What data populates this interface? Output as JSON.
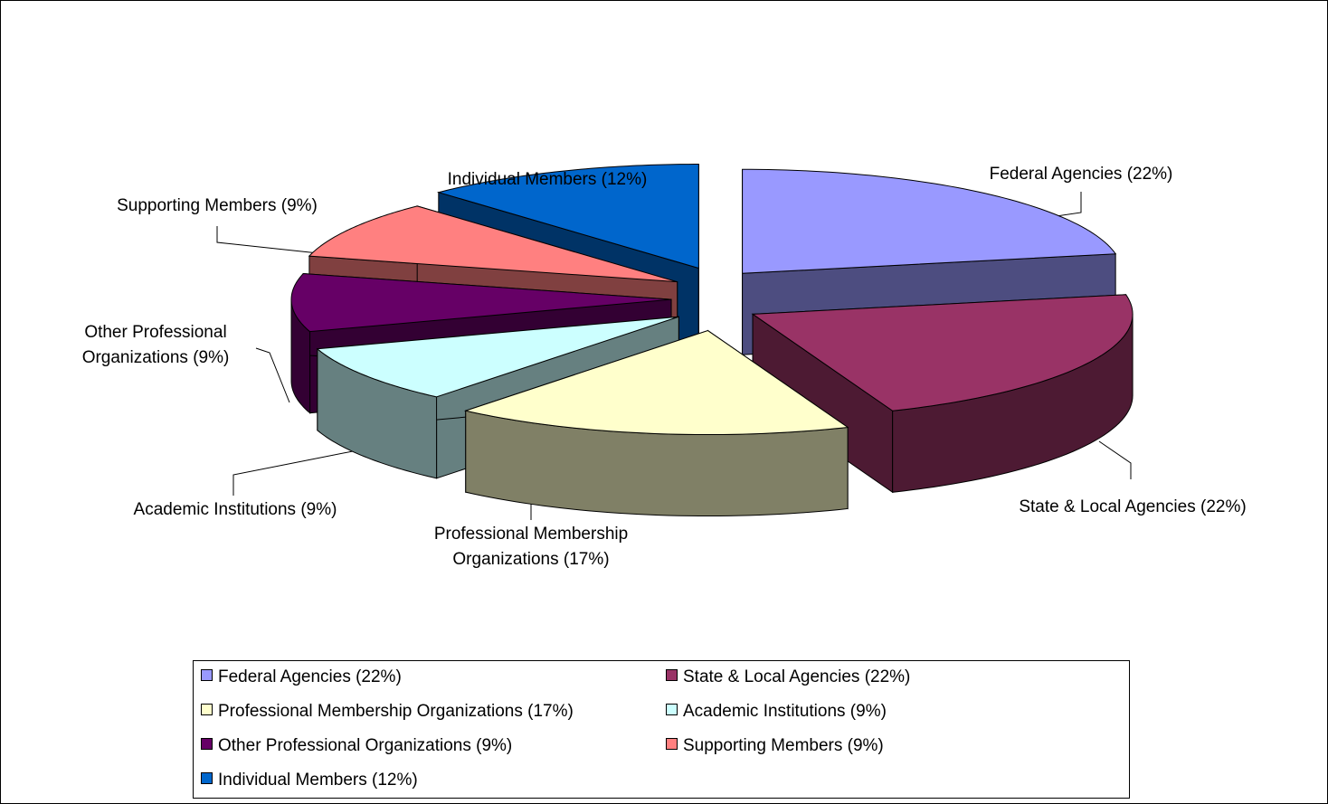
{
  "chart_data": {
    "type": "pie3d",
    "categories": [
      "Federal Agencies (22%)",
      "State & Local Agencies (22%)",
      "Professional Membership Organizations (17%)",
      "Academic Institutions (9%)",
      "Other Professional Organizations (9%)",
      "Supporting Members (9%)",
      "Individual Members (12%)"
    ],
    "values": [
      22,
      22,
      17,
      9,
      9,
      9,
      12
    ],
    "colors": [
      "#9999ff",
      "#993366",
      "#ffffcc",
      "#ccffff",
      "#660066",
      "#ff8080",
      "#0066cc"
    ],
    "legend": "bottom"
  }
}
